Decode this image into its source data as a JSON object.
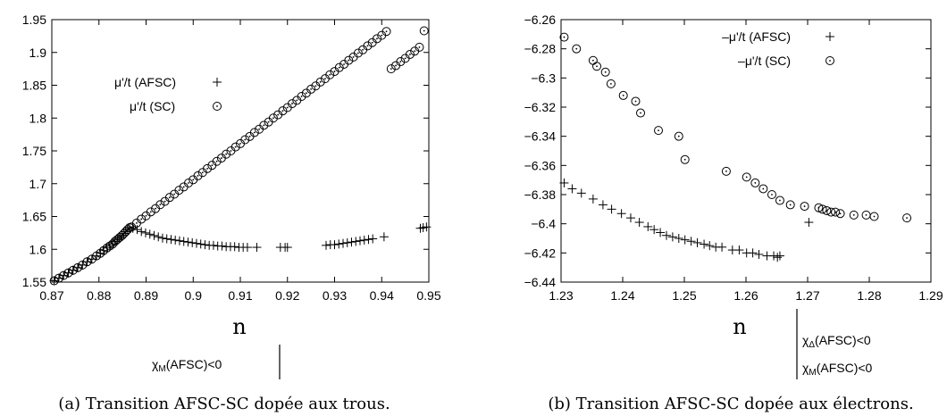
{
  "chart_data": [
    {
      "type": "scatter",
      "xlabel": "n",
      "xlim": [
        0.87,
        0.95
      ],
      "ylim": [
        1.55,
        1.95
      ],
      "xticks": [
        "0.87",
        "0.88",
        "0.89",
        "0.9",
        "0.91",
        "0.92",
        "0.93",
        "0.94",
        "0.95"
      ],
      "yticks": [
        "1.55",
        "1.6",
        "1.65",
        "1.7",
        "1.75",
        "1.8",
        "1.85",
        "1.9",
        "1.95"
      ],
      "legend_position": "top-left",
      "grid": false,
      "series": [
        {
          "name": "μ'/t (AFSC)",
          "marker": "plus",
          "x": [
            0.8705,
            0.8715,
            0.8725,
            0.8735,
            0.8745,
            0.8755,
            0.8765,
            0.8775,
            0.8785,
            0.8795,
            0.8803,
            0.881,
            0.8817,
            0.8823,
            0.8829,
            0.8834,
            0.8839,
            0.8844,
            0.8849,
            0.8853,
            0.8857,
            0.8861,
            0.8865,
            0.8872,
            0.8881,
            0.889,
            0.8899,
            0.8908,
            0.8917,
            0.8926,
            0.8935,
            0.8944,
            0.8953,
            0.8962,
            0.8971,
            0.898,
            0.8989,
            0.8998,
            0.9007,
            0.9016,
            0.9025,
            0.9034,
            0.9043,
            0.9052,
            0.9061,
            0.907,
            0.9079,
            0.9088,
            0.9097,
            0.9106,
            0.9115,
            0.9135,
            0.9185,
            0.9195,
            0.92,
            0.9282,
            0.9291,
            0.93,
            0.9309,
            0.9318,
            0.9327,
            0.9336,
            0.9345,
            0.9354,
            0.9363,
            0.9372,
            0.9381,
            0.9405,
            0.9482,
            0.9488,
            0.9495
          ],
          "y": [
            1.552,
            1.556,
            1.56,
            1.564,
            1.568,
            1.572,
            1.576,
            1.581,
            1.585,
            1.59,
            1.594,
            1.598,
            1.602,
            1.605,
            1.608,
            1.612,
            1.615,
            1.618,
            1.621,
            1.624,
            1.627,
            1.63,
            1.633,
            1.632,
            1.63,
            1.627,
            1.625,
            1.623,
            1.621,
            1.619,
            1.617,
            1.616,
            1.615,
            1.614,
            1.613,
            1.612,
            1.611,
            1.61,
            1.609,
            1.608,
            1.607,
            1.606,
            1.606,
            1.605,
            1.605,
            1.604,
            1.604,
            1.604,
            1.603,
            1.603,
            1.603,
            1.603,
            1.603,
            1.603,
            1.603,
            1.606,
            1.607,
            1.607,
            1.608,
            1.609,
            1.61,
            1.611,
            1.612,
            1.613,
            1.614,
            1.615,
            1.616,
            1.619,
            1.632,
            1.633,
            1.634
          ]
        },
        {
          "name": "μ'/t (SC)",
          "marker": "circle",
          "x": [
            0.8705,
            0.8715,
            0.8725,
            0.8735,
            0.8745,
            0.8755,
            0.8765,
            0.8775,
            0.8785,
            0.8795,
            0.8803,
            0.881,
            0.8817,
            0.8823,
            0.8829,
            0.8834,
            0.8839,
            0.8844,
            0.8849,
            0.8853,
            0.8857,
            0.8861,
            0.8865,
            0.8869,
            0.888,
            0.889,
            0.89,
            0.891,
            0.892,
            0.893,
            0.894,
            0.895,
            0.896,
            0.897,
            0.898,
            0.899,
            0.9,
            0.901,
            0.902,
            0.903,
            0.904,
            0.905,
            0.906,
            0.907,
            0.908,
            0.909,
            0.91,
            0.911,
            0.912,
            0.913,
            0.914,
            0.915,
            0.916,
            0.917,
            0.918,
            0.919,
            0.92,
            0.921,
            0.922,
            0.923,
            0.924,
            0.925,
            0.926,
            0.927,
            0.928,
            0.929,
            0.93,
            0.931,
            0.932,
            0.933,
            0.934,
            0.935,
            0.936,
            0.937,
            0.938,
            0.939,
            0.94,
            0.941,
            0.942,
            0.943,
            0.944,
            0.945,
            0.946,
            0.947,
            0.948,
            0.949
          ],
          "y": [
            1.552,
            1.556,
            1.56,
            1.564,
            1.568,
            1.572,
            1.576,
            1.581,
            1.585,
            1.59,
            1.594,
            1.598,
            1.602,
            1.605,
            1.608,
            1.612,
            1.615,
            1.618,
            1.621,
            1.624,
            1.627,
            1.63,
            1.633,
            1.634,
            1.64,
            1.646,
            1.651,
            1.657,
            1.662,
            1.668,
            1.673,
            1.679,
            1.684,
            1.69,
            1.695,
            1.701,
            1.706,
            1.712,
            1.717,
            1.723,
            1.728,
            1.734,
            1.739,
            1.745,
            1.75,
            1.756,
            1.761,
            1.767,
            1.772,
            1.778,
            1.783,
            1.789,
            1.794,
            1.8,
            1.805,
            1.811,
            1.816,
            1.822,
            1.827,
            1.833,
            1.838,
            1.844,
            1.849,
            1.855,
            1.86,
            1.866,
            1.871,
            1.877,
            1.882,
            1.888,
            1.893,
            1.899,
            1.904,
            1.91,
            1.915,
            1.921,
            1.926,
            1.932,
            1.875,
            1.88,
            1.886,
            1.891,
            1.897,
            1.902,
            1.908,
            1.933
          ]
        }
      ],
      "annotation": "χ_M(AFSC)<0",
      "annotation_x": 0.886,
      "caption": "(a) Transition AFSC-SC dopée aux trous."
    },
    {
      "type": "scatter",
      "xlabel": "n",
      "xlim": [
        1.23,
        1.29
      ],
      "ylim": [
        -6.44,
        -6.26
      ],
      "xticks": [
        "1.23",
        "1.24",
        "1.25",
        "1.26",
        "1.27",
        "1.28",
        "1.29"
      ],
      "yticks": [
        "-6.44",
        "-6.42",
        "-6.4",
        "-6.38",
        "-6.36",
        "-6.34",
        "-6.32",
        "-6.3",
        "-6.28",
        "-6.26"
      ],
      "legend_position": "top-right",
      "grid": false,
      "series": [
        {
          "name": "–μ'/t (AFSC)",
          "marker": "plus",
          "x": [
            1.2305,
            1.2318,
            1.2333,
            1.2352,
            1.2368,
            1.2382,
            1.2398,
            1.2413,
            1.2427,
            1.2441,
            1.2451,
            1.2461,
            1.2471,
            1.2481,
            1.2491,
            1.2501,
            1.2511,
            1.2521,
            1.2532,
            1.2541,
            1.2551,
            1.2561,
            1.2578,
            1.2589,
            1.2601,
            1.2611,
            1.2621,
            1.2634,
            1.2645,
            1.2651,
            1.2655,
            1.2702
          ],
          "y": [
            -6.372,
            -6.376,
            -6.379,
            -6.383,
            -6.387,
            -6.39,
            -6.393,
            -6.396,
            -6.399,
            -6.402,
            -6.404,
            -6.406,
            -6.408,
            -6.409,
            -6.41,
            -6.411,
            -6.412,
            -6.413,
            -6.414,
            -6.415,
            -6.416,
            -6.416,
            -6.418,
            -6.418,
            -6.42,
            -6.42,
            -6.421,
            -6.422,
            -6.422,
            -6.423,
            -6.422,
            -6.399
          ]
        },
        {
          "name": "–μ'/t (SC)",
          "marker": "circle",
          "x": [
            1.2305,
            1.2325,
            1.2352,
            1.2358,
            1.2372,
            1.2381,
            1.2401,
            1.2421,
            1.2429,
            1.2458,
            1.2491,
            1.2501,
            1.2568,
            1.2601,
            1.2615,
            1.2628,
            1.2642,
            1.2655,
            1.2672,
            1.2695,
            1.2718,
            1.2724,
            1.2731,
            1.2738,
            1.2745,
            1.2753,
            1.2775,
            1.2795,
            1.2808,
            1.2861
          ],
          "y": [
            -6.272,
            -6.28,
            -6.288,
            -6.292,
            -6.296,
            -6.304,
            -6.312,
            -6.316,
            -6.324,
            -6.336,
            -6.34,
            -6.356,
            -6.364,
            -6.368,
            -6.372,
            -6.376,
            -6.38,
            -6.384,
            -6.387,
            -6.388,
            -6.389,
            -6.39,
            -6.391,
            -6.392,
            -6.392,
            -6.393,
            -6.394,
            -6.394,
            -6.395,
            -6.396
          ]
        }
      ],
      "annotation_lines": [
        "χ_Δ(AFSC)<0",
        "χ_M(AFSC)<0"
      ],
      "annotation_x": 1.2709,
      "caption": "(b) Transition AFSC-SC dopée aux électrons."
    }
  ],
  "texts": {
    "a_legend_1": "μ'/t (AFSC)",
    "a_legend_2": "μ'/t (SC)",
    "a_xlabel": "n",
    "a_annot_chi": "χ",
    "a_annot_sub": "M",
    "a_annot_rest": "(AFSC)<0",
    "a_caption": "(a) Transition AFSC-SC dopée aux trous.",
    "b_legend_1": "–μ'/t (AFSC)",
    "b_legend_2": "–μ'/t (SC)",
    "b_xlabel": "n",
    "b_annot1_chi": "χ",
    "b_annot1_sub": "Δ",
    "b_annot1_rest": "(AFSC)<0",
    "b_annot2_chi": "χ",
    "b_annot2_sub": "M",
    "b_annot2_rest": "(AFSC)<0",
    "b_caption": "(b) Transition AFSC-SC dopée aux électrons."
  }
}
